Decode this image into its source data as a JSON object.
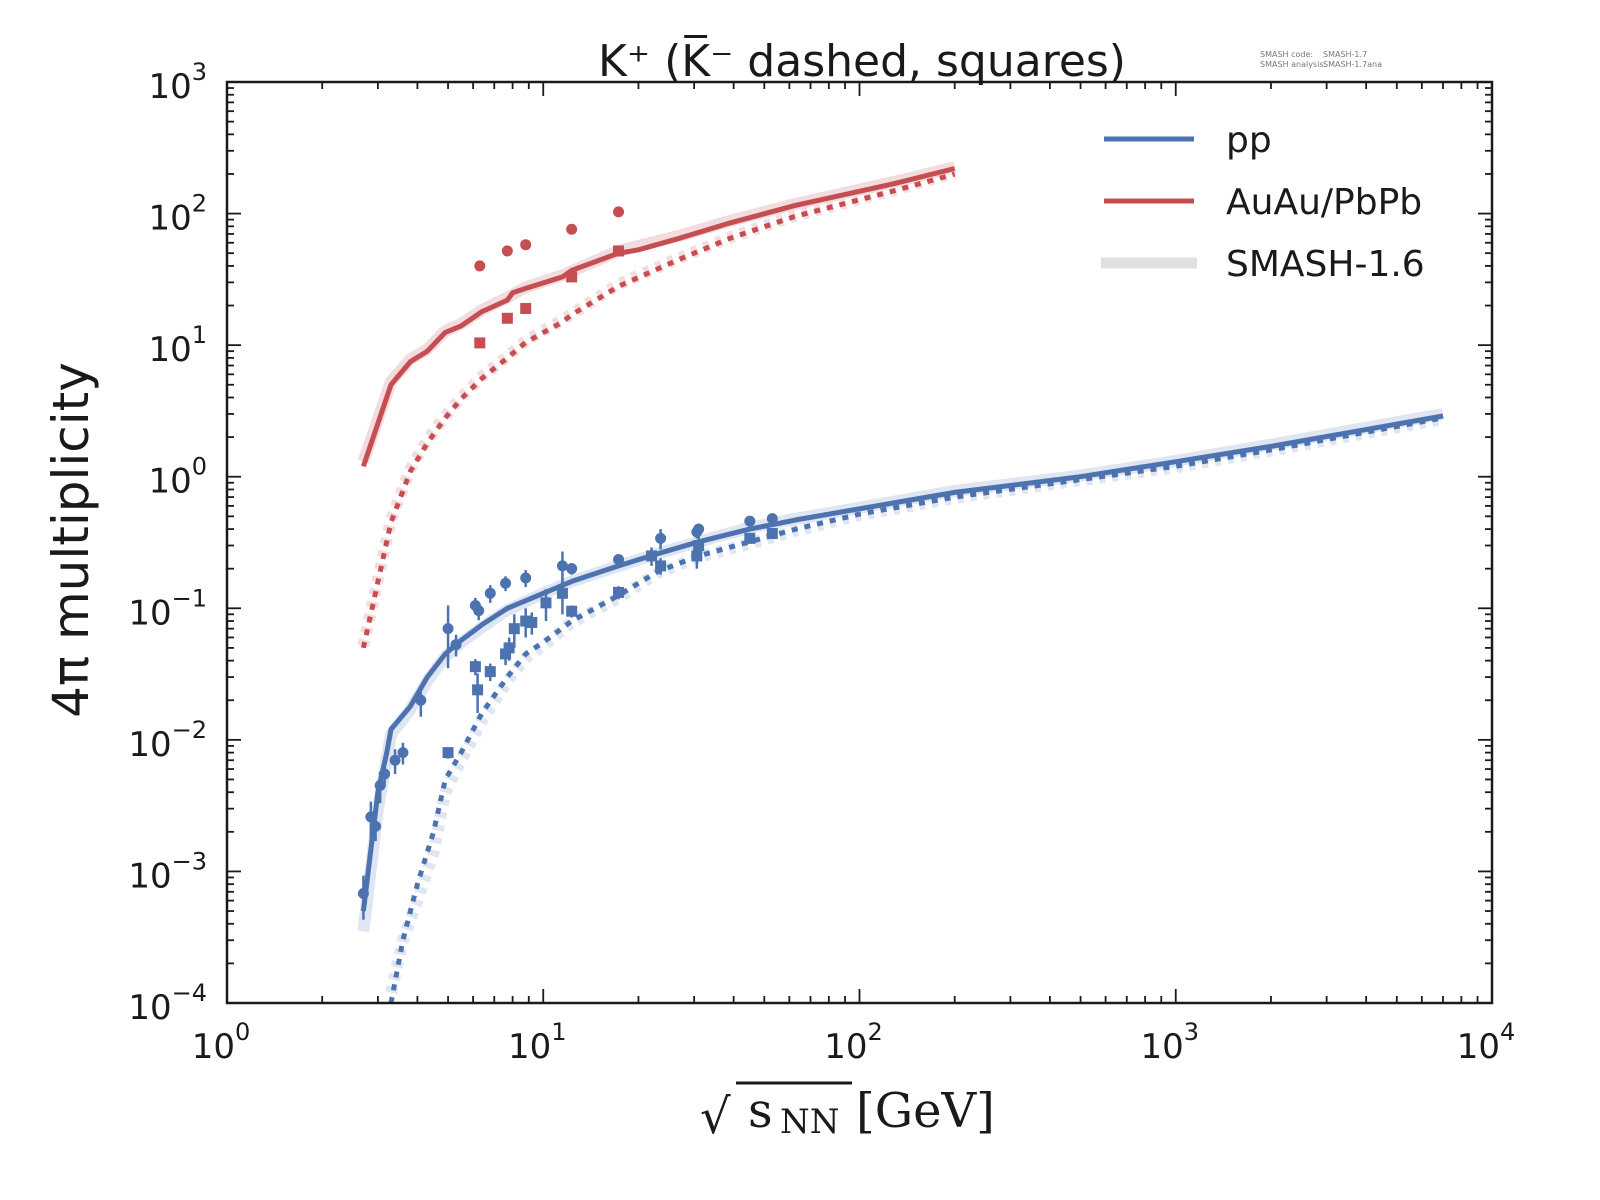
{
  "chart_data": {
    "type": "line",
    "title": "K⁺ (K̅⁻ dashed, squares)",
    "xlabel": "√s_NN [GeV]",
    "xlabel_parts": {
      "radical": "√",
      "s": "s",
      "sub": "NN",
      "unit": "[GeV]"
    },
    "ylabel": "4π multiplicity",
    "xscale": "log",
    "yscale": "log",
    "xlim": [
      1,
      10000
    ],
    "ylim": [
      0.0001,
      1000
    ],
    "grid": false,
    "legend_placement": "top-right",
    "x_ticks": [
      {
        "value": 1,
        "base": "10",
        "exp": "0"
      },
      {
        "value": 10,
        "base": "10",
        "exp": "1"
      },
      {
        "value": 100,
        "base": "10",
        "exp": "2"
      },
      {
        "value": 1000,
        "base": "10",
        "exp": "3"
      },
      {
        "value": 10000,
        "base": "10",
        "exp": "4"
      }
    ],
    "y_ticks": [
      {
        "value": 1000,
        "base": "10",
        "exp": "3"
      },
      {
        "value": 100,
        "base": "10",
        "exp": "2"
      },
      {
        "value": 10,
        "base": "10",
        "exp": "1"
      },
      {
        "value": 1,
        "base": "10",
        "exp": "0"
      },
      {
        "value": 0.1,
        "base": "10",
        "exp": "−1"
      },
      {
        "value": 0.01,
        "base": "10",
        "exp": "−2"
      },
      {
        "value": 0.001,
        "base": "10",
        "exp": "−3"
      },
      {
        "value": 0.0001,
        "base": "10",
        "exp": "−4"
      }
    ],
    "legend": [
      {
        "label": "pp",
        "color": "#4c72b0",
        "style": "line"
      },
      {
        "label": "AuAu/PbPb",
        "color": "#c44e52",
        "style": "line"
      },
      {
        "label": "SMASH-1.6",
        "color": "#e0e0e0",
        "style": "thick-line"
      }
    ],
    "annotation": {
      "line1_key": "SMASH code:",
      "line1_val": "SMASH-1.7",
      "line2_key": "SMASH analysis:",
      "line2_val": "SMASH-1.7ana"
    },
    "colors": {
      "pp": "#4c72b0",
      "auau": "#c44e52",
      "pp_old": "#dfe5f1",
      "auau_old": "#f3dcdd",
      "legend_old": "#e0e0e0"
    },
    "series": [
      {
        "name": "AuAu/PbPb K+ (SMASH-1.7)",
        "system": "auau",
        "particle": "K+",
        "style": "solid",
        "x": [
          2.7,
          3.3,
          3.8,
          4.3,
          4.9,
          5.5,
          6.4,
          7.7,
          8.0,
          8.8,
          11.5,
          12.3,
          17.3,
          20,
          27,
          39,
          62.4,
          130,
          200
        ],
        "y": [
          1.2,
          5.0,
          7.5,
          9.0,
          12.5,
          14,
          18,
          22,
          25,
          27,
          33,
          37,
          50,
          53,
          65,
          85,
          115,
          170,
          220
        ]
      },
      {
        "name": "AuAu/PbPb K- (SMASH-1.7)",
        "system": "auau",
        "particle": "K-",
        "style": "dashed",
        "x": [
          2.7,
          3.3,
          3.8,
          4.3,
          4.9,
          5.5,
          6.4,
          7.7,
          8.8,
          11.5,
          12.3,
          17.3,
          27,
          39,
          62.4,
          130,
          200
        ],
        "y": [
          0.05,
          0.45,
          1.1,
          1.8,
          2.8,
          3.9,
          5.6,
          8.0,
          10.5,
          15,
          17,
          28,
          45,
          65,
          95,
          150,
          200
        ]
      },
      {
        "name": "AuAu/PbPb K+ (SMASH-1.6)",
        "system": "auau",
        "particle": "K+",
        "style": "old-solid",
        "x": [
          2.7,
          3.3,
          3.8,
          4.3,
          4.9,
          5.5,
          6.4,
          7.7,
          8.8,
          11.5,
          17.3,
          27,
          39,
          62.4,
          130,
          200
        ],
        "y": [
          1.3,
          5.3,
          7.8,
          9.3,
          12.8,
          14.5,
          18.5,
          23,
          27.5,
          34,
          52,
          68,
          88,
          118,
          175,
          225
        ]
      },
      {
        "name": "AuAu/PbPb K- (SMASH-1.6)",
        "system": "auau",
        "particle": "K-",
        "style": "old-dashed",
        "x": [
          2.7,
          3.3,
          3.8,
          4.3,
          4.9,
          5.5,
          6.4,
          7.7,
          8.8,
          11.5,
          17.3,
          27,
          39,
          62.4,
          130,
          200
        ],
        "y": [
          0.052,
          0.47,
          1.15,
          1.9,
          2.9,
          4.0,
          5.8,
          8.2,
          10.8,
          15.5,
          29,
          46,
          66,
          96,
          152,
          205
        ]
      },
      {
        "name": "pp K+ (SMASH-1.7)",
        "system": "pp",
        "particle": "K+",
        "style": "solid",
        "x": [
          2.7,
          3.0,
          3.2,
          3.3,
          3.8,
          4.3,
          4.9,
          5.5,
          6.4,
          7.7,
          10,
          12.3,
          17.3,
          23,
          31,
          45,
          63,
          100,
          200,
          500,
          1000,
          2000,
          7000
        ],
        "y": [
          0.0005,
          0.004,
          0.008,
          0.012,
          0.018,
          0.03,
          0.045,
          0.057,
          0.075,
          0.1,
          0.13,
          0.16,
          0.21,
          0.26,
          0.32,
          0.4,
          0.47,
          0.57,
          0.76,
          1.0,
          1.3,
          1.7,
          2.9
        ]
      },
      {
        "name": "pp K- (SMASH-1.7)",
        "system": "pp",
        "particle": "K-",
        "style": "dashed",
        "x": [
          3.3,
          3.6,
          4.0,
          4.5,
          4.9,
          5.5,
          6.4,
          7.7,
          8.8,
          10,
          12.3,
          17.3,
          23,
          31,
          45,
          63,
          100,
          200,
          500,
          1000,
          2000,
          7000
        ],
        "y": [
          0.0001,
          0.0003,
          0.0008,
          0.002,
          0.005,
          0.008,
          0.016,
          0.03,
          0.045,
          0.055,
          0.08,
          0.125,
          0.19,
          0.25,
          0.32,
          0.4,
          0.52,
          0.7,
          0.95,
          1.2,
          1.6,
          2.8
        ]
      },
      {
        "name": "pp K+ (SMASH-1.6)",
        "system": "pp",
        "particle": "K+",
        "style": "old-solid",
        "x": [
          2.7,
          3.0,
          3.3,
          3.8,
          4.3,
          4.9,
          5.5,
          6.4,
          7.7,
          10,
          12.3,
          17.3,
          23,
          31,
          45,
          63,
          100,
          200,
          500,
          1000,
          2000,
          7000
        ],
        "y": [
          0.00035,
          0.003,
          0.011,
          0.017,
          0.028,
          0.043,
          0.055,
          0.072,
          0.097,
          0.13,
          0.16,
          0.21,
          0.26,
          0.32,
          0.41,
          0.48,
          0.58,
          0.78,
          1.02,
          1.32,
          1.75,
          3.0
        ]
      },
      {
        "name": "pp K- (SMASH-1.6)",
        "system": "pp",
        "particle": "K-",
        "style": "old-dashed",
        "x": [
          3.3,
          3.6,
          4.0,
          4.5,
          4.9,
          5.5,
          6.4,
          7.7,
          8.8,
          10,
          12.3,
          17.3,
          23,
          31,
          45,
          63,
          100,
          200,
          500,
          1000,
          2000,
          7000
        ],
        "y": [
          0.00012,
          0.0003,
          0.0006,
          0.0014,
          0.004,
          0.007,
          0.014,
          0.028,
          0.042,
          0.052,
          0.078,
          0.12,
          0.185,
          0.245,
          0.31,
          0.39,
          0.51,
          0.69,
          0.94,
          1.18,
          1.58,
          2.75
        ]
      }
    ],
    "data_points": [
      {
        "name": "AuAu/PbPb K+ data",
        "system": "auau",
        "marker": "circle",
        "points": [
          {
            "x": 6.3,
            "y": 40
          },
          {
            "x": 7.7,
            "y": 52
          },
          {
            "x": 8.8,
            "y": 58
          },
          {
            "x": 12.3,
            "y": 76
          },
          {
            "x": 17.3,
            "y": 103
          }
        ]
      },
      {
        "name": "AuAu/PbPb K- data",
        "system": "auau",
        "marker": "square",
        "points": [
          {
            "x": 6.3,
            "y": 10.4
          },
          {
            "x": 7.7,
            "y": 16
          },
          {
            "x": 8.8,
            "y": 19
          },
          {
            "x": 12.3,
            "y": 33
          },
          {
            "x": 17.3,
            "y": 52
          }
        ]
      },
      {
        "name": "pp K+ data",
        "system": "pp",
        "marker": "circle",
        "points": [
          {
            "x": 2.7,
            "y": 0.00068,
            "err": 0.00025
          },
          {
            "x": 2.85,
            "y": 0.0026,
            "err": 0.0008
          },
          {
            "x": 2.95,
            "y": 0.0022,
            "err": 0.0005
          },
          {
            "x": 3.05,
            "y": 0.0045,
            "err": 0.0012
          },
          {
            "x": 3.15,
            "y": 0.0055,
            "err": 0.001
          },
          {
            "x": 3.4,
            "y": 0.007,
            "err": 0.0015
          },
          {
            "x": 3.6,
            "y": 0.008,
            "err": 0.0015
          },
          {
            "x": 4.1,
            "y": 0.02,
            "err": 0.005
          },
          {
            "x": 5.0,
            "y": 0.07,
            "err": 0.035
          },
          {
            "x": 5.3,
            "y": 0.053,
            "err": 0.01
          },
          {
            "x": 6.1,
            "y": 0.105,
            "err": 0.015
          },
          {
            "x": 6.25,
            "y": 0.096,
            "err": 0.015
          },
          {
            "x": 6.8,
            "y": 0.13,
            "err": 0.02
          },
          {
            "x": 7.6,
            "y": 0.155,
            "err": 0.02
          },
          {
            "x": 8.8,
            "y": 0.17,
            "err": 0.025
          },
          {
            "x": 11.5,
            "y": 0.21,
            "err": 0.06
          },
          {
            "x": 12.3,
            "y": 0.2,
            "err": 0.02
          },
          {
            "x": 17.3,
            "y": 0.235,
            "err": 0.02
          },
          {
            "x": 23.5,
            "y": 0.34,
            "err": 0.06
          },
          {
            "x": 30.6,
            "y": 0.38,
            "err": 0.04
          },
          {
            "x": 31,
            "y": 0.4,
            "err": 0.04
          },
          {
            "x": 45,
            "y": 0.46,
            "err": 0.03
          },
          {
            "x": 53,
            "y": 0.48,
            "err": 0.03
          }
        ]
      },
      {
        "name": "pp K- data",
        "system": "pp",
        "marker": "square",
        "points": [
          {
            "x": 5.0,
            "y": 0.008,
            "err": 0.0008
          },
          {
            "x": 6.1,
            "y": 0.036,
            "err": 0.005
          },
          {
            "x": 6.2,
            "y": 0.024,
            "err": 0.008
          },
          {
            "x": 6.8,
            "y": 0.033,
            "err": 0.005
          },
          {
            "x": 7.6,
            "y": 0.045,
            "err": 0.008
          },
          {
            "x": 7.8,
            "y": 0.05,
            "err": 0.01
          },
          {
            "x": 8.1,
            "y": 0.07,
            "err": 0.02
          },
          {
            "x": 8.8,
            "y": 0.08,
            "err": 0.02
          },
          {
            "x": 9.2,
            "y": 0.078,
            "err": 0.015
          },
          {
            "x": 10.2,
            "y": 0.11,
            "err": 0.03
          },
          {
            "x": 11.5,
            "y": 0.13,
            "err": 0.04
          },
          {
            "x": 12.3,
            "y": 0.095,
            "err": 0.01
          },
          {
            "x": 17.3,
            "y": 0.132,
            "err": 0.015
          },
          {
            "x": 22,
            "y": 0.25,
            "err": 0.04
          },
          {
            "x": 23.5,
            "y": 0.21,
            "err": 0.03
          },
          {
            "x": 30.6,
            "y": 0.25,
            "err": 0.05
          },
          {
            "x": 31,
            "y": 0.3,
            "err": 0.05
          },
          {
            "x": 45,
            "y": 0.34,
            "err": 0.03
          },
          {
            "x": 53,
            "y": 0.37,
            "err": 0.03
          }
        ]
      }
    ]
  }
}
